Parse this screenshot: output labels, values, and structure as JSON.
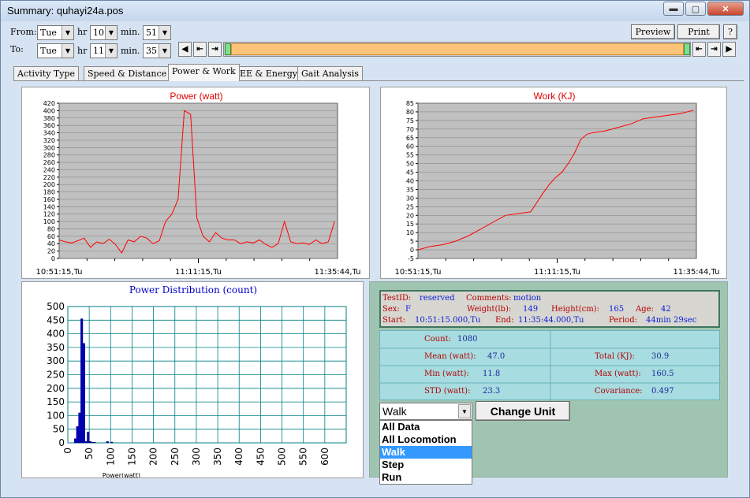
{
  "window": {
    "title": "Summary: quhayi24a.pos"
  },
  "range": {
    "from_label": "From:",
    "to_label": "To:",
    "hr_label": "hr",
    "min_label": "min.",
    "from_day": "Tue",
    "from_hr": "10",
    "from_min": "51",
    "to_day": "Tue",
    "to_hr": "11",
    "to_min": "35"
  },
  "toolbar": {
    "preview": "Preview",
    "print": "Print",
    "help": "?"
  },
  "tabs": [
    "Activity Type",
    "Speed & Distance",
    "Power & Work",
    "EE & Energy",
    "Gait Analysis"
  ],
  "active_tab": "Power & Work",
  "colors": {
    "plot_bg": "#c0c0c0",
    "line": "#ff0000",
    "hist_bar": "#0000c8",
    "hist_grid": "#008080",
    "info_bg": "#9fc5b2",
    "stats_bg": "#a7dce0"
  },
  "chart_data": [
    {
      "type": "line",
      "title": "Power (watt)",
      "ylim": [
        0,
        420
      ],
      "yticks": [
        0,
        20,
        40,
        60,
        80,
        100,
        120,
        140,
        160,
        180,
        200,
        220,
        240,
        260,
        280,
        300,
        320,
        340,
        360,
        380,
        400,
        420
      ],
      "xtick_labels": [
        "10:51:15,Tu",
        "11:11:15,Tu",
        "11:35:44,Tu"
      ],
      "x_minutes": [
        0,
        1,
        2,
        3,
        4,
        5,
        6,
        7,
        8,
        9,
        10,
        11,
        12,
        13,
        14,
        15,
        16,
        17,
        18,
        19,
        20,
        21,
        22,
        23,
        24,
        25,
        26,
        27,
        28,
        29,
        30,
        31,
        32,
        33,
        34,
        35,
        36,
        37,
        38,
        39,
        40,
        41,
        42,
        43,
        44
      ],
      "values": [
        50,
        45,
        42,
        48,
        55,
        30,
        45,
        40,
        52,
        38,
        15,
        50,
        45,
        60,
        55,
        40,
        48,
        100,
        120,
        160,
        400,
        390,
        110,
        60,
        45,
        70,
        55,
        50,
        50,
        40,
        45,
        42,
        50,
        38,
        30,
        40,
        100,
        45,
        40,
        42,
        38,
        50,
        40,
        45,
        100
      ]
    },
    {
      "type": "line",
      "title": "Work (KJ)",
      "ylim": [
        -5,
        85
      ],
      "yticks": [
        -5,
        0,
        5,
        10,
        15,
        20,
        25,
        30,
        35,
        40,
        45,
        50,
        55,
        60,
        65,
        70,
        75,
        80,
        85
      ],
      "xtick_labels": [
        "10:51:15,Tu",
        "11:11:15,Tu",
        "11:35:44,Tu"
      ],
      "x_minutes": [
        0,
        2,
        4,
        6,
        8,
        10,
        12,
        14,
        16,
        18,
        20,
        21,
        22,
        23,
        24,
        25,
        26,
        27,
        28,
        30,
        32,
        34,
        36,
        38,
        40,
        42,
        44
      ],
      "values": [
        0,
        2,
        3,
        5,
        8,
        12,
        16,
        20,
        21,
        22,
        33,
        38,
        42,
        45,
        50,
        56,
        64,
        67,
        68,
        69,
        71,
        73,
        76,
        77,
        78,
        79,
        81
      ]
    },
    {
      "type": "bar",
      "title": "Power Distribution (count)",
      "xlabel": "Power(watt)",
      "ylim": [
        0,
        500
      ],
      "yticks": [
        0,
        50,
        100,
        150,
        200,
        250,
        300,
        350,
        400,
        450,
        500
      ],
      "xlim": [
        0,
        650
      ],
      "xticks": [
        0,
        50,
        100,
        150,
        200,
        250,
        300,
        350,
        400,
        450,
        500,
        550,
        600
      ],
      "bins": [
        10,
        15,
        20,
        25,
        30,
        35,
        40,
        45,
        50,
        55,
        60,
        65,
        70,
        75,
        80,
        85,
        90,
        95,
        100,
        105,
        110,
        115,
        120
      ],
      "values": [
        0,
        15,
        60,
        110,
        455,
        365,
        5,
        40,
        5,
        2,
        2,
        0,
        0,
        0,
        0,
        0,
        5,
        0,
        3,
        0,
        0,
        0,
        0
      ]
    }
  ],
  "info": {
    "testid_label": "TestID:",
    "testid": "reserved",
    "comments_label": "Comments:",
    "comments": "motion",
    "sex_label": "Sex:",
    "sex": "F",
    "weight_label": "Weight(lb):",
    "weight": "149",
    "height_label": "Height(cm):",
    "height": "165",
    "age_label": "Age:",
    "age": "42",
    "start_label": "Start:",
    "start": "10:51:15.000,Tu",
    "end_label": "End:",
    "end": "11:35:44.000,Tu",
    "period_label": "Period:",
    "period": "44min 29sec"
  },
  "stats": {
    "count_label": "Count:",
    "count": "1080",
    "mean_label": "Mean (watt):",
    "mean": "47.0",
    "total_label": "Total (KJ):",
    "total": "30.9",
    "min_label": "Min (watt):",
    "min": "11.8",
    "max_label": "Max (watt):",
    "max": "160.5",
    "std_label": "STD (watt):",
    "std": "23.3",
    "cov_label": "Covariance:",
    "cov": "0.497"
  },
  "unit_select": {
    "value": "Walk",
    "options": [
      "All Data",
      "All Locomotion",
      "Walk",
      "Step",
      "Run"
    ],
    "highlighted": "Walk"
  },
  "change_unit": "Change Unit"
}
